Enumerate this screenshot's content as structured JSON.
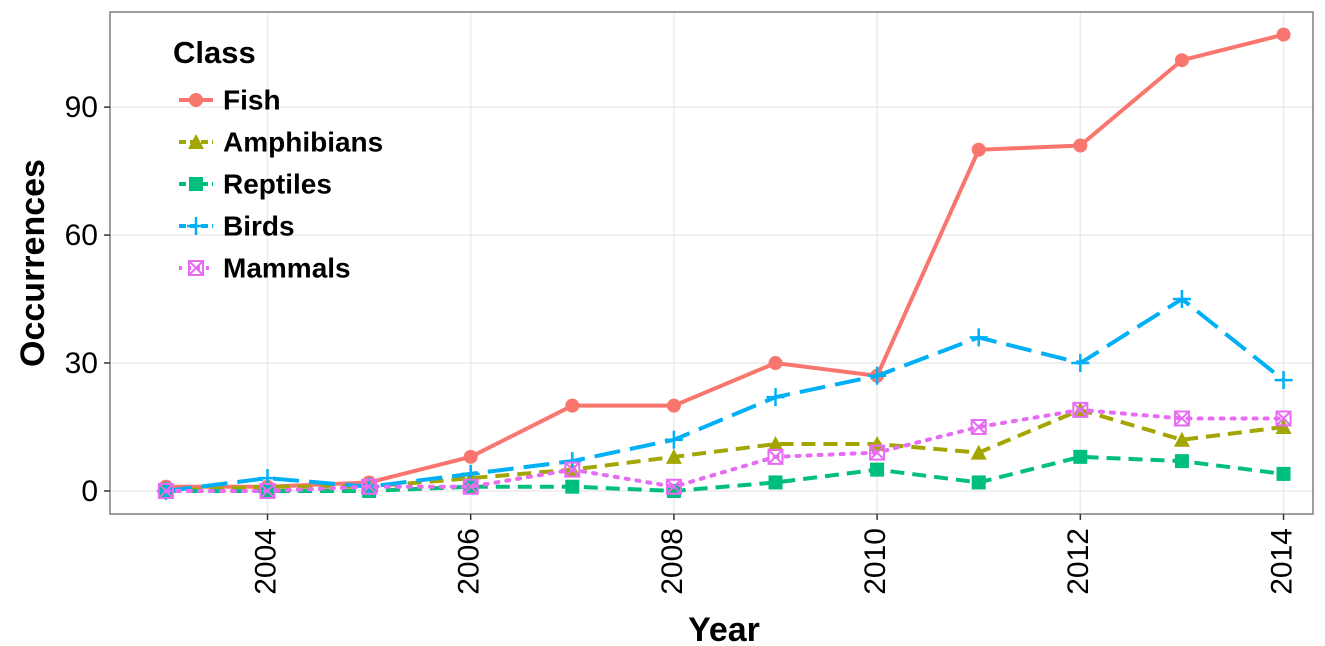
{
  "chart_data": {
    "type": "line",
    "x_label": "Year",
    "y_label": "Occurrences",
    "legend_title": "Class",
    "x": [
      2003,
      2004,
      2005,
      2006,
      2007,
      2008,
      2009,
      2010,
      2011,
      2012,
      2013,
      2014
    ],
    "series": [
      {
        "name": "Fish",
        "color": "#F8766D",
        "line_style": "solid",
        "marker": "circle",
        "values": [
          1,
          1,
          2,
          8,
          20,
          20,
          30,
          27,
          80,
          81,
          101,
          107
        ]
      },
      {
        "name": "Amphibians",
        "color": "#A3A500",
        "line_style": "dashed",
        "marker": "triangle",
        "values": [
          0,
          1,
          1,
          3,
          5,
          8,
          11,
          11,
          9,
          19,
          12,
          15
        ]
      },
      {
        "name": "Reptiles",
        "color": "#00BF7D",
        "line_style": "dashed",
        "marker": "square",
        "values": [
          0,
          0,
          0,
          1,
          1,
          0,
          2,
          5,
          2,
          8,
          7,
          4
        ]
      },
      {
        "name": "Birds",
        "color": "#00B0F6",
        "line_style": "longdash",
        "marker": "plus",
        "values": [
          0,
          3,
          1,
          4,
          7,
          12,
          22,
          27,
          36,
          30,
          45,
          26
        ]
      },
      {
        "name": "Mammals",
        "color": "#E76BF3",
        "line_style": "dotted",
        "marker": "square-cross",
        "values": [
          0,
          0,
          1,
          1,
          5,
          1,
          8,
          9,
          15,
          19,
          17,
          17
        ]
      }
    ],
    "xlim": [
      2002.45,
      2014.29
    ],
    "ylim": [
      -5.4,
      112.3
    ],
    "xticks": [
      2004,
      2006,
      2008,
      2010,
      2012,
      2014
    ],
    "yticks": [
      0,
      30,
      60,
      90
    ],
    "grid": true,
    "legend_position": "top-left"
  }
}
